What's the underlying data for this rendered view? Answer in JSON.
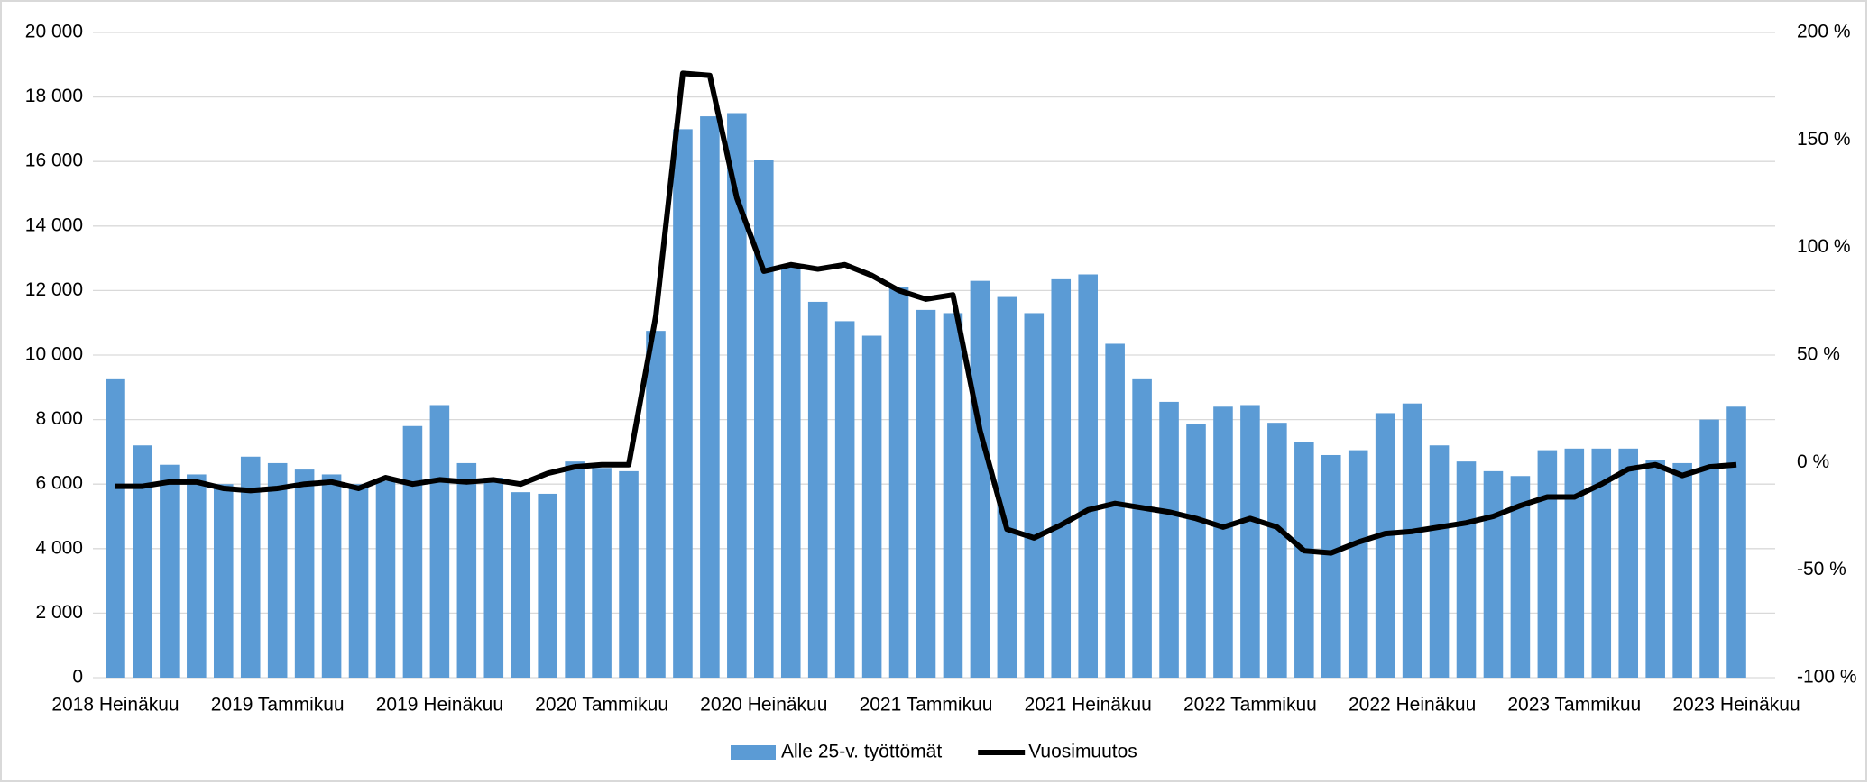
{
  "chart_data": {
    "type": "bar",
    "categories": [
      "2018 Heinäkuu",
      null,
      null,
      null,
      null,
      null,
      "2019 Tammikuu",
      null,
      null,
      null,
      null,
      null,
      "2019 Heinäkuu",
      null,
      null,
      null,
      null,
      null,
      "2020 Tammikuu",
      null,
      null,
      null,
      null,
      null,
      "2020 Heinäkuu",
      null,
      null,
      null,
      null,
      null,
      "2021 Tammikuu",
      null,
      null,
      null,
      null,
      null,
      "2021 Heinäkuu",
      null,
      null,
      null,
      null,
      null,
      "2022 Tammikuu",
      null,
      null,
      null,
      null,
      null,
      "2022 Heinäkuu",
      null,
      null,
      null,
      null,
      null,
      "2023 Tammikuu",
      null,
      null,
      null,
      null,
      null,
      "2023 Heinäkuu"
    ],
    "series": [
      {
        "name": "Alle 25-v. työttömät",
        "type": "bar",
        "color": "#5b9bd5",
        "values": [
          9250,
          7200,
          6600,
          6300,
          6000,
          6850,
          6650,
          6450,
          6300,
          6000,
          6100,
          7800,
          8450,
          6650,
          6200,
          5750,
          5700,
          6700,
          6500,
          6400,
          10750,
          17000,
          17400,
          17500,
          16050,
          12800,
          11650,
          11050,
          10600,
          12100,
          11400,
          11300,
          12300,
          11800,
          11300,
          12350,
          12500,
          10350,
          9250,
          8550,
          7850,
          8400,
          8450,
          7900,
          7300,
          6900,
          7050,
          8200,
          8500,
          7200,
          6700,
          6400,
          6250,
          7050,
          7100,
          7100,
          7100,
          6750,
          6650,
          8000,
          8400
        ]
      },
      {
        "name": "Vuosimuutos",
        "type": "line",
        "axis": "y2",
        "color": "#000000",
        "values": [
          -11,
          -11,
          -9,
          -9,
          -12,
          -13,
          -12,
          -10,
          -9,
          -12,
          -7,
          -10,
          -8,
          -9,
          -8,
          -10,
          -5,
          -2,
          -1,
          -1,
          68,
          181,
          180,
          123,
          89,
          92,
          90,
          92,
          87,
          80,
          76,
          78,
          15,
          -31,
          -35,
          -29,
          -22,
          -19,
          -21,
          -23,
          -26,
          -30,
          -26,
          -30,
          -41,
          -42,
          -37,
          -33,
          -32,
          -30,
          -28,
          -25,
          -20,
          -16,
          -16,
          -10,
          -3,
          -1,
          -6,
          -2,
          -1
        ]
      }
    ],
    "ylim": [
      0,
      20000
    ],
    "yticks": [
      {
        "value": 0,
        "label": "0"
      },
      {
        "value": 2000,
        "label": "2 000"
      },
      {
        "value": 4000,
        "label": "4 000"
      },
      {
        "value": 6000,
        "label": "6 000"
      },
      {
        "value": 8000,
        "label": "8 000"
      },
      {
        "value": 10000,
        "label": "10 000"
      },
      {
        "value": 12000,
        "label": "12 000"
      },
      {
        "value": 14000,
        "label": "14 000"
      },
      {
        "value": 16000,
        "label": "16 000"
      },
      {
        "value": 18000,
        "label": "18 000"
      },
      {
        "value": 20000,
        "label": "20 000"
      }
    ],
    "y2lim": [
      -100,
      200
    ],
    "y2ticks": [
      {
        "value": -100,
        "label": "-100 %"
      },
      {
        "value": -50,
        "label": "-50 %"
      },
      {
        "value": 0,
        "label": "0 %"
      },
      {
        "value": 50,
        "label": "50 %"
      },
      {
        "value": 100,
        "label": "100 %"
      },
      {
        "value": 150,
        "label": "150 %"
      },
      {
        "value": 200,
        "label": "200 %"
      }
    ],
    "grid": true,
    "legend": "bottom"
  }
}
